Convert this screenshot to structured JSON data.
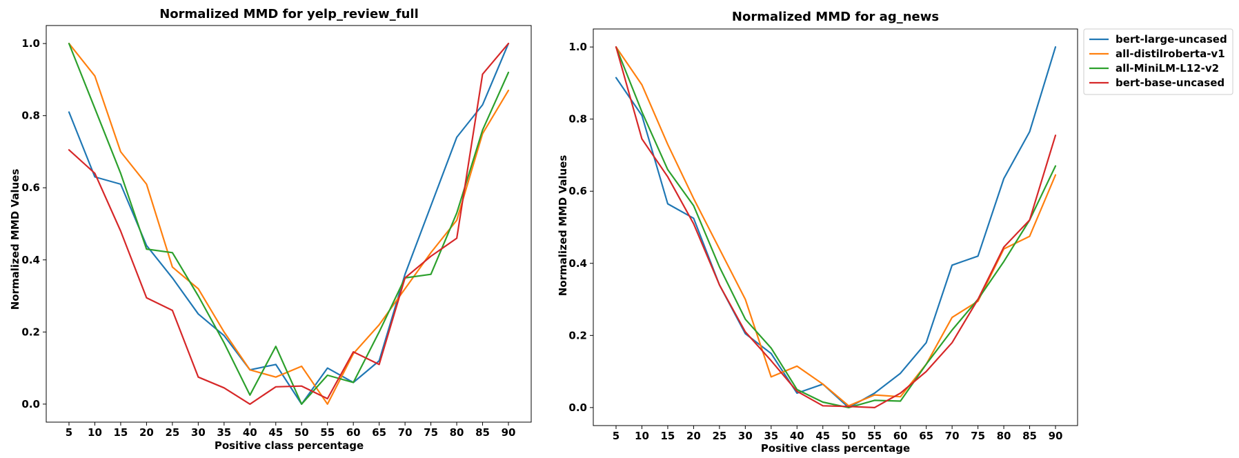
{
  "chart_data": [
    {
      "type": "line",
      "title": "Normalized MMD for yelp_review_full",
      "xlabel": "Positive class percentage",
      "ylabel": "Normalized MMD Values",
      "x": [
        5,
        10,
        15,
        20,
        25,
        30,
        35,
        40,
        45,
        50,
        55,
        60,
        65,
        70,
        75,
        80,
        85,
        90
      ],
      "ylim": [
        -0.05,
        1.05
      ],
      "yticks": [
        "0.0",
        "0.2",
        "0.4",
        "0.6",
        "0.8",
        "1.0"
      ],
      "legend": null,
      "series": [
        {
          "name": "bert-large-uncased",
          "color": "#1f77b4",
          "values": [
            0.81,
            0.63,
            0.61,
            0.44,
            0.35,
            0.25,
            0.19,
            0.095,
            0.11,
            0.0,
            0.1,
            0.06,
            0.12,
            0.36,
            0.55,
            0.74,
            0.83,
            1.0
          ]
        },
        {
          "name": "all-distilroberta-v1",
          "color": "#ff7f0e",
          "values": [
            1.0,
            0.91,
            0.7,
            0.61,
            0.38,
            0.32,
            0.2,
            0.095,
            0.075,
            0.105,
            0.0,
            0.14,
            0.22,
            0.32,
            0.42,
            0.51,
            0.75,
            0.87
          ]
        },
        {
          "name": "all-MiniLM-L12-v2",
          "color": "#2ca02c",
          "values": [
            1.0,
            0.82,
            0.64,
            0.43,
            0.42,
            0.3,
            0.17,
            0.025,
            0.16,
            0.0,
            0.08,
            0.06,
            0.2,
            0.35,
            0.36,
            0.53,
            0.76,
            0.92
          ]
        },
        {
          "name": "bert-base-uncased",
          "color": "#d62728",
          "values": [
            0.705,
            0.64,
            0.48,
            0.295,
            0.26,
            0.075,
            0.045,
            0.0,
            0.048,
            0.05,
            0.015,
            0.145,
            0.11,
            0.35,
            0.41,
            0.46,
            0.915,
            1.0
          ]
        }
      ]
    },
    {
      "type": "line",
      "title": "Normalized MMD for ag_news",
      "xlabel": "Positive class percentage",
      "ylabel": "Normalized MMD Values",
      "x": [
        5,
        10,
        15,
        20,
        25,
        30,
        35,
        40,
        45,
        50,
        55,
        60,
        65,
        70,
        75,
        80,
        85,
        90
      ],
      "ylim": [
        -0.05,
        1.05
      ],
      "yticks": [
        "0.0",
        "0.2",
        "0.4",
        "0.6",
        "0.8",
        "1.0"
      ],
      "legend": "outside-right",
      "series": [
        {
          "name": "bert-large-uncased",
          "color": "#1f77b4",
          "values": [
            0.915,
            0.81,
            0.565,
            0.525,
            0.34,
            0.205,
            0.15,
            0.04,
            0.065,
            0.0,
            0.04,
            0.095,
            0.18,
            0.395,
            0.42,
            0.635,
            0.765,
            1.0
          ]
        },
        {
          "name": "all-distilroberta-v1",
          "color": "#ff7f0e",
          "values": [
            1.0,
            0.895,
            0.73,
            0.58,
            0.44,
            0.3,
            0.085,
            0.115,
            0.065,
            0.005,
            0.035,
            0.03,
            0.12,
            0.25,
            0.295,
            0.44,
            0.475,
            0.645
          ]
        },
        {
          "name": "all-MiniLM-L12-v2",
          "color": "#2ca02c",
          "values": [
            1.0,
            0.82,
            0.66,
            0.56,
            0.39,
            0.245,
            0.165,
            0.05,
            0.015,
            0.0,
            0.02,
            0.018,
            0.12,
            0.215,
            0.3,
            0.405,
            0.52,
            0.67
          ]
        },
        {
          "name": "bert-base-uncased",
          "color": "#d62728",
          "values": [
            1.0,
            0.745,
            0.64,
            0.51,
            0.34,
            0.21,
            0.13,
            0.045,
            0.005,
            0.003,
            0.0,
            0.04,
            0.1,
            0.18,
            0.3,
            0.445,
            0.52,
            0.755
          ]
        }
      ]
    }
  ]
}
